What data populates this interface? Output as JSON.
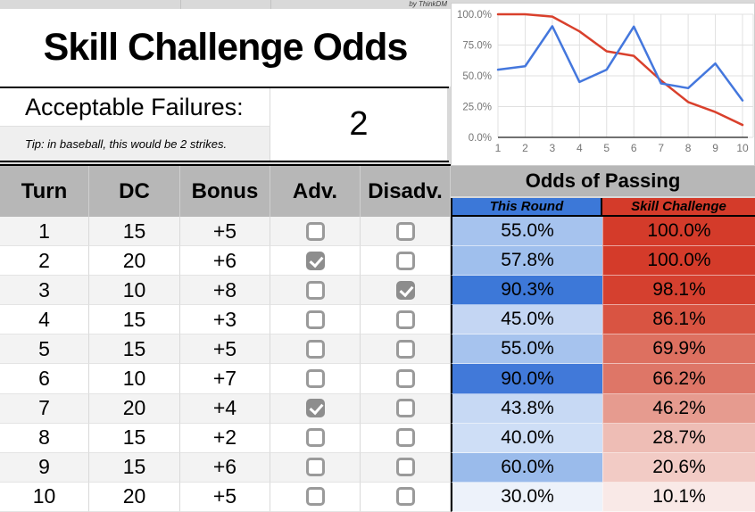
{
  "page": {
    "credit": "by ThinkDM",
    "title": "Skill Challenge Odds"
  },
  "failures": {
    "label": "Acceptable Failures:",
    "tip": "Tip: in baseball, this would be 2 strikes.",
    "value": "2"
  },
  "table": {
    "headers": {
      "turn": "Turn",
      "dc": "DC",
      "bonus": "Bonus",
      "adv": "Adv.",
      "disadv": "Disadv."
    },
    "odds_header": "Odds of Passing",
    "odds_columns": {
      "round": "This Round",
      "challenge": "Skill Challenge"
    },
    "rows": [
      {
        "turn": "1",
        "dc": "15",
        "bonus": "+5",
        "adv": false,
        "disadv": false,
        "round": "55.0%",
        "round_bg": "#a6c3ee",
        "challenge": "100.0%",
        "challenge_bg": "#d43b2a"
      },
      {
        "turn": "2",
        "dc": "20",
        "bonus": "+6",
        "adv": true,
        "disadv": false,
        "round": "57.8%",
        "round_bg": "#9fbfed",
        "challenge": "100.0%",
        "challenge_bg": "#d43b2a"
      },
      {
        "turn": "3",
        "dc": "10",
        "bonus": "+8",
        "adv": false,
        "disadv": true,
        "round": "90.3%",
        "round_bg": "#3d78d8",
        "challenge": "98.1%",
        "challenge_bg": "#d5402f"
      },
      {
        "turn": "4",
        "dc": "15",
        "bonus": "+3",
        "adv": false,
        "disadv": false,
        "round": "45.0%",
        "round_bg": "#c4d6f3",
        "challenge": "86.1%",
        "challenge_bg": "#d95442"
      },
      {
        "turn": "5",
        "dc": "15",
        "bonus": "+5",
        "adv": false,
        "disadv": false,
        "round": "55.0%",
        "round_bg": "#a6c3ee",
        "challenge": "69.9%",
        "challenge_bg": "#dd7060"
      },
      {
        "turn": "6",
        "dc": "10",
        "bonus": "+7",
        "adv": false,
        "disadv": false,
        "round": "90.0%",
        "round_bg": "#4179d9",
        "challenge": "66.2%",
        "challenge_bg": "#de7667"
      },
      {
        "turn": "7",
        "dc": "20",
        "bonus": "+4",
        "adv": true,
        "disadv": false,
        "round": "43.8%",
        "round_bg": "#c7d9f4",
        "challenge": "46.2%",
        "challenge_bg": "#e69b8f"
      },
      {
        "turn": "8",
        "dc": "15",
        "bonus": "+2",
        "adv": false,
        "disadv": false,
        "round": "40.0%",
        "round_bg": "#cedef6",
        "challenge": "28.7%",
        "challenge_bg": "#eebdb5"
      },
      {
        "turn": "9",
        "dc": "15",
        "bonus": "+6",
        "adv": false,
        "disadv": false,
        "round": "60.0%",
        "round_bg": "#9abbeb",
        "challenge": "20.6%",
        "challenge_bg": "#f2cbc5"
      },
      {
        "turn": "10",
        "dc": "20",
        "bonus": "+5",
        "adv": false,
        "disadv": false,
        "round": "30.0%",
        "round_bg": "#edf2fa",
        "challenge": "10.1%",
        "challenge_bg": "#f9e9e7"
      }
    ]
  },
  "chart_data": {
    "type": "line",
    "x": [
      1,
      2,
      3,
      4,
      5,
      6,
      7,
      8,
      9,
      10
    ],
    "series": [
      {
        "name": "This Round",
        "color": "#4477dd",
        "values": [
          55.0,
          57.8,
          90.3,
          45.0,
          55.0,
          90.0,
          43.8,
          40.0,
          60.0,
          30.0
        ]
      },
      {
        "name": "Skill Challenge",
        "color": "#d9402c",
        "values": [
          100.0,
          100.0,
          98.1,
          86.1,
          69.9,
          66.2,
          46.2,
          28.7,
          20.6,
          10.1
        ]
      }
    ],
    "ylim": [
      0,
      100
    ],
    "ytick_labels": [
      "0.0%",
      "25.0%",
      "50.0%",
      "75.0%",
      "100.0%"
    ],
    "ytick_values": [
      0,
      25,
      50,
      75,
      100
    ],
    "xtick_labels": [
      "1",
      "2",
      "3",
      "4",
      "5",
      "6",
      "7",
      "8",
      "9",
      "10"
    ],
    "grid": true,
    "legend": "none"
  },
  "colors": {
    "page_bg": "#d9d9d9",
    "header_gray": "#b7b7b7",
    "stripe": "#f3f3f3",
    "blue_header": "#3c78d8",
    "red_header": "#d43b2a",
    "axis_text": "#757575",
    "gridline": "#e0e0e0"
  }
}
